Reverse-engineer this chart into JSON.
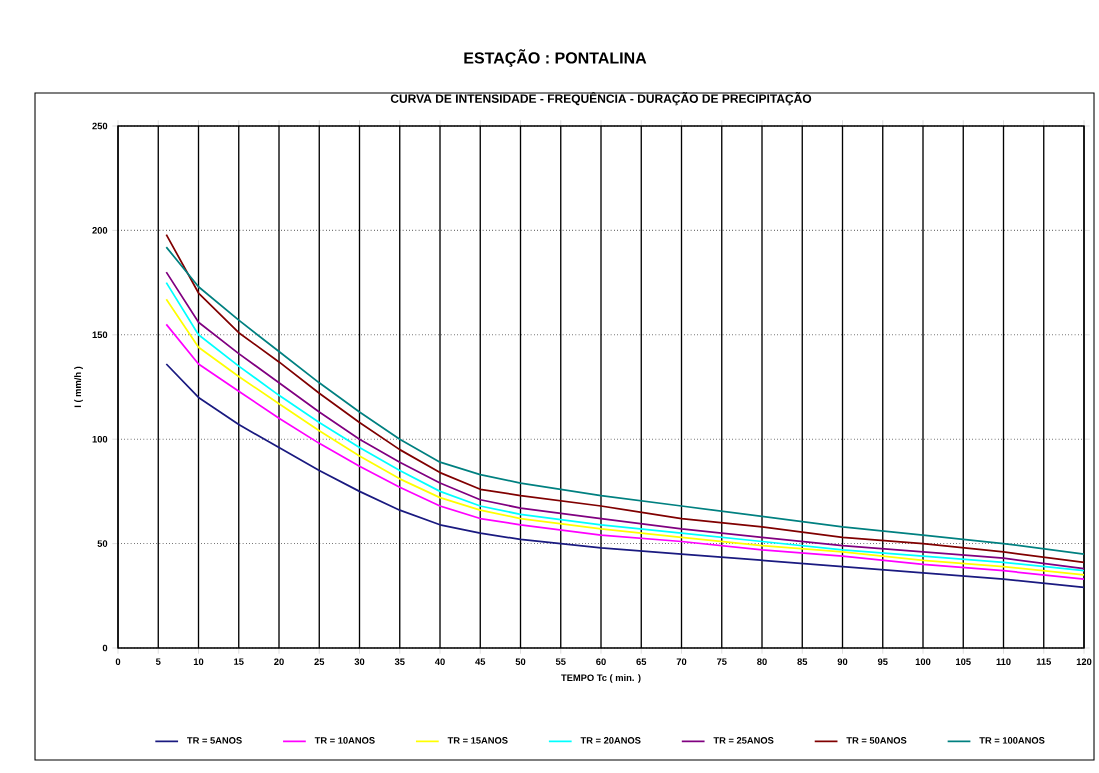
{
  "chart_data": {
    "type": "line",
    "title": "ESTAÇÃO : PONTALINA",
    "subtitle": "CURVA DE INTENSIDADE  - FREQUÊNCIA  - DURAÇÃO DE PRECIPITAÇÃO",
    "xlabel": "TEMPO Tc ( min. )",
    "ylabel": "I ( mm/h )",
    "x": [
      6,
      10,
      15,
      20,
      25,
      30,
      35,
      40,
      45,
      50,
      60,
      70,
      80,
      90,
      100,
      110,
      120
    ],
    "series": [
      {
        "name": "TR = 5ANOS",
        "color": "#1a1a80",
        "values": [
          136,
          120,
          107,
          96,
          85,
          75,
          66,
          59,
          55,
          52,
          48,
          45,
          42,
          39,
          36,
          33,
          29
        ]
      },
      {
        "name": "TR = 10ANOS",
        "color": "#ff00ff",
        "values": [
          155,
          136,
          123,
          110,
          98,
          87,
          77,
          68,
          62,
          59,
          54,
          51,
          47,
          44,
          40,
          37,
          33
        ]
      },
      {
        "name": "TR = 15ANOS",
        "color": "#ffff00",
        "values": [
          167,
          144,
          130,
          117,
          104,
          92,
          81,
          72,
          66,
          62,
          57,
          53,
          49,
          46,
          42,
          39,
          35
        ]
      },
      {
        "name": "TR = 20ANOS",
        "color": "#00ffff",
        "values": [
          175,
          150,
          135,
          121,
          108,
          96,
          85,
          75,
          68,
          64,
          59,
          55,
          51,
          47,
          44,
          41,
          37
        ]
      },
      {
        "name": "TR = 25ANOS",
        "color": "#800080",
        "values": [
          180,
          156,
          141,
          127,
          113,
          100,
          89,
          79,
          71,
          67,
          62,
          57,
          53,
          49,
          46,
          43,
          38
        ]
      },
      {
        "name": "TR = 50ANOS",
        "color": "#800000",
        "values": [
          198,
          170,
          151,
          137,
          122,
          108,
          95,
          84,
          76,
          73,
          68,
          62,
          58,
          53,
          50,
          46,
          41
        ]
      },
      {
        "name": "TR = 100ANOS",
        "color": "#008080",
        "values": [
          192,
          173,
          157,
          142,
          127,
          113,
          100,
          89,
          83,
          79,
          73,
          68,
          63,
          58,
          54,
          50,
          45
        ]
      }
    ],
    "xlim": [
      0,
      120
    ],
    "xticks": [
      0,
      5,
      10,
      15,
      20,
      25,
      30,
      35,
      40,
      45,
      50,
      55,
      60,
      65,
      70,
      75,
      80,
      85,
      90,
      95,
      100,
      105,
      110,
      115,
      120
    ],
    "ylim": [
      0,
      250
    ],
    "yticks": [
      0,
      50,
      100,
      150,
      200,
      250
    ],
    "grid": true,
    "legend": "bottom",
    "marker": "none",
    "line_style": "solid"
  }
}
